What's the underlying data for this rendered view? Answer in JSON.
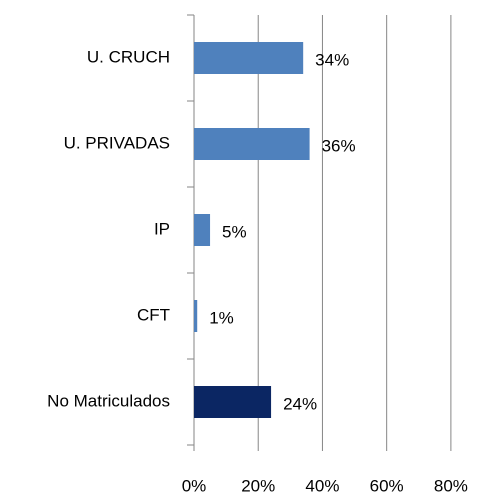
{
  "chart_data": {
    "type": "bar",
    "orientation": "horizontal",
    "categories": [
      "U. CRUCH",
      "U. PRIVADAS",
      "IP",
      "CFT",
      "No Matriculados"
    ],
    "values": [
      34,
      36,
      5,
      1,
      24
    ],
    "value_labels": [
      "34%",
      "36%",
      "5%",
      "1%",
      "24%"
    ],
    "colors": [
      "#4f81bd",
      "#4f81bd",
      "#4f81bd",
      "#4f81bd",
      "#0b2663"
    ],
    "xlim": [
      0,
      90
    ],
    "xticks": [
      {
        "value": 0,
        "label": "0%"
      },
      {
        "value": 20,
        "label": "20%"
      },
      {
        "value": 40,
        "label": "40%"
      },
      {
        "value": 60,
        "label": "60%"
      },
      {
        "value": 80,
        "label": "80%"
      }
    ],
    "grid": true
  }
}
